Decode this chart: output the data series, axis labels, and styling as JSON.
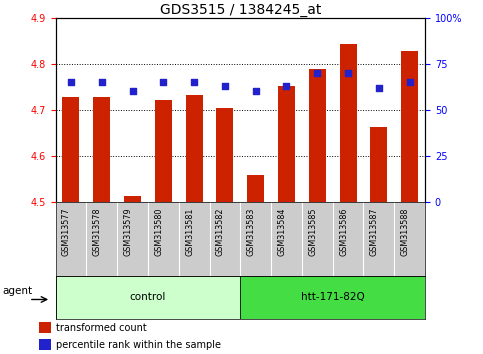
{
  "title": "GDS3515 / 1384245_at",
  "samples": [
    "GSM313577",
    "GSM313578",
    "GSM313579",
    "GSM313580",
    "GSM313581",
    "GSM313582",
    "GSM313583",
    "GSM313584",
    "GSM313585",
    "GSM313586",
    "GSM313587",
    "GSM313588"
  ],
  "bar_values": [
    4.727,
    4.727,
    4.513,
    4.721,
    4.731,
    4.703,
    4.558,
    4.752,
    4.789,
    4.843,
    4.662,
    4.827
  ],
  "percentile_values": [
    65,
    65,
    60,
    65,
    65,
    63,
    60,
    63,
    70,
    70,
    62,
    65
  ],
  "bar_color": "#cc2200",
  "percentile_color": "#2222cc",
  "bar_bottom": 4.5,
  "ylim_left": [
    4.5,
    4.9
  ],
  "ylim_right": [
    0,
    100
  ],
  "yticks_left": [
    4.5,
    4.6,
    4.7,
    4.8,
    4.9
  ],
  "yticks_right": [
    0,
    25,
    50,
    75,
    100
  ],
  "ytick_labels_right": [
    "0",
    "25",
    "50",
    "75",
    "100%"
  ],
  "group_control_color": "#ccffcc",
  "group_htt_color": "#44dd44",
  "group_control_label": "control",
  "group_htt_label": "htt-171-82Q",
  "agent_label": "agent",
  "legend_bar_label": "transformed count",
  "legend_pct_label": "percentile rank within the sample",
  "bg_xtick": "#cccccc",
  "title_fontsize": 10,
  "tick_fontsize": 7,
  "label_fontsize": 7.5
}
